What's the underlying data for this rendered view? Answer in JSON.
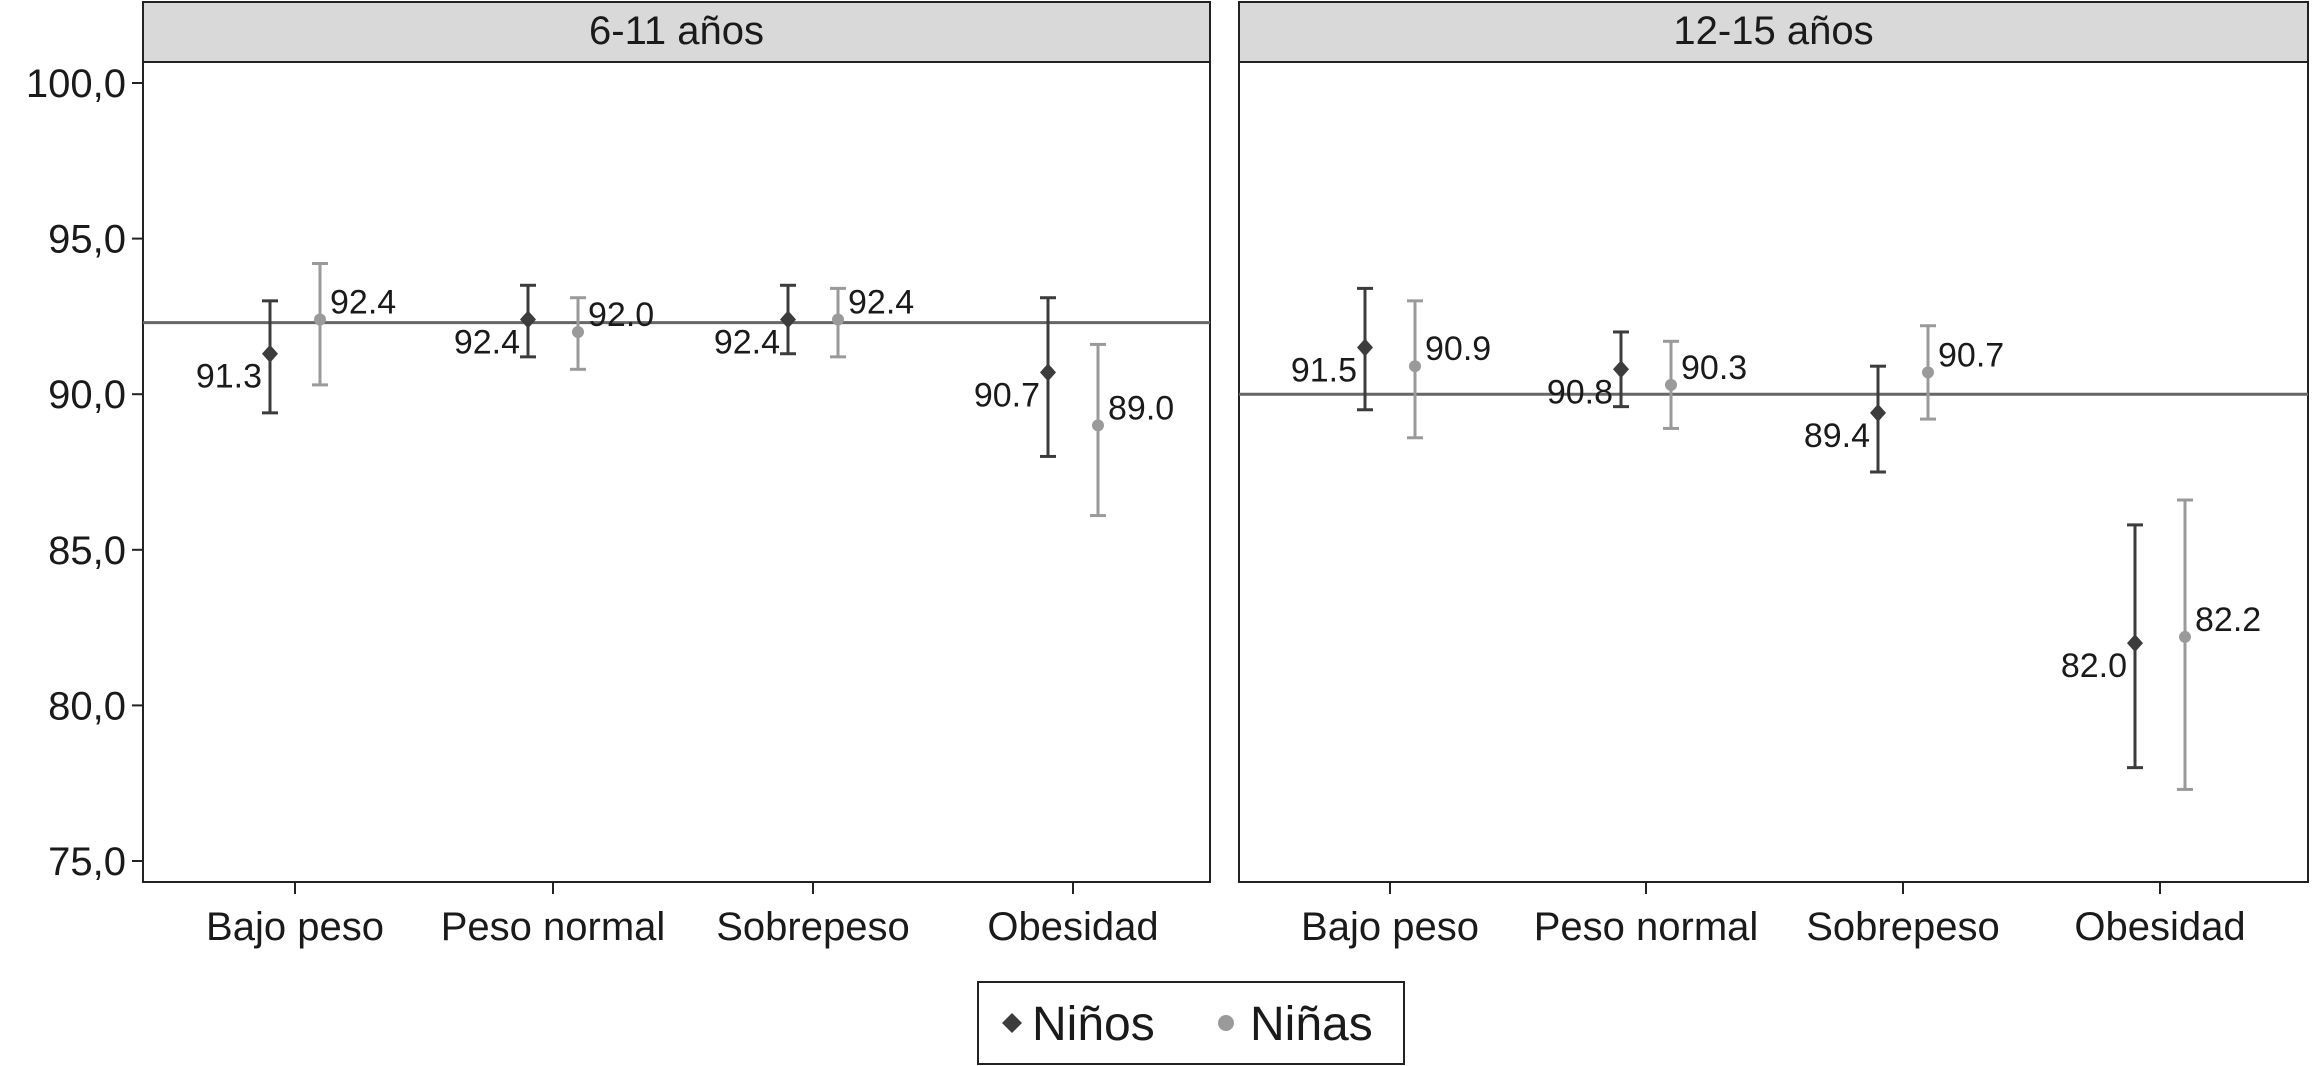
{
  "chart_data": {
    "type": "scatter",
    "subtype": "point-with-error-bars",
    "ylim": [
      75,
      100
    ],
    "yticks": [
      "100,0",
      "95,0",
      "90,0",
      "85,0",
      "80,0",
      "75,0"
    ],
    "ytick_values": [
      100,
      95,
      90,
      85,
      80,
      75
    ],
    "categories": [
      "Bajo peso",
      "Peso normal",
      "Sobrepeso",
      "Obesidad"
    ],
    "legend": {
      "placement": "bottom-center",
      "entries": [
        {
          "name": "Niños",
          "marker": "diamond",
          "color": "#3c3c3c"
        },
        {
          "name": "Niñas",
          "marker": "circle",
          "color": "#9a9a9a"
        }
      ]
    },
    "panels": [
      {
        "title": "6-11 años",
        "reference_line": 92.3,
        "series": [
          {
            "name": "Niños",
            "values": [
              91.3,
              92.4,
              92.4,
              90.7
            ],
            "labels": [
              "91.3",
              "92.4",
              "92.4",
              "90.7"
            ],
            "lower": [
              89.4,
              91.2,
              91.3,
              88.0
            ],
            "upper": [
              93.0,
              93.5,
              93.5,
              93.1
            ]
          },
          {
            "name": "Niñas",
            "values": [
              92.4,
              92.0,
              92.4,
              89.0
            ],
            "labels": [
              "92.4",
              "92.0",
              "92.4",
              "89.0"
            ],
            "lower": [
              90.3,
              90.8,
              91.2,
              86.1
            ],
            "upper": [
              94.2,
              93.1,
              93.4,
              91.6
            ]
          }
        ]
      },
      {
        "title": "12-15 años",
        "reference_line": 90.0,
        "series": [
          {
            "name": "Niños",
            "values": [
              91.5,
              90.8,
              89.4,
              82.0
            ],
            "labels": [
              "91.5",
              "90.8",
              "89.4",
              "82.0"
            ],
            "lower": [
              89.5,
              89.6,
              87.5,
              78.0
            ],
            "upper": [
              93.4,
              92.0,
              90.9,
              85.8
            ]
          },
          {
            "name": "Niñas",
            "values": [
              90.9,
              90.3,
              90.7,
              82.2
            ],
            "labels": [
              "90.9",
              "90.3",
              "90.7",
              "82.2"
            ],
            "lower": [
              88.6,
              88.9,
              89.2,
              77.3
            ],
            "upper": [
              93.0,
              91.7,
              92.2,
              86.6
            ]
          }
        ]
      }
    ]
  }
}
